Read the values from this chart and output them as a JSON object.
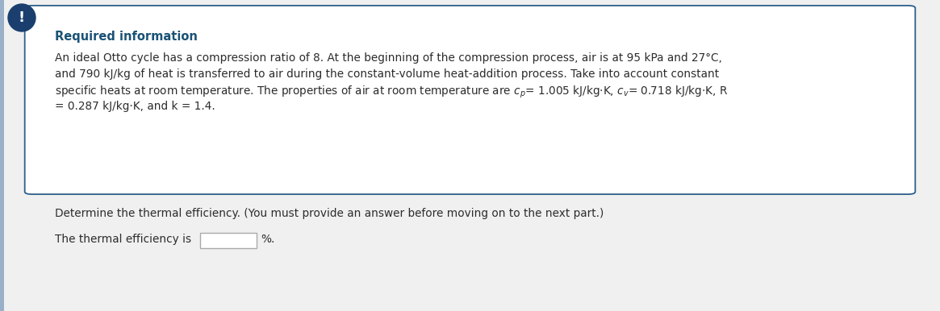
{
  "bg_color": "#f0f0f0",
  "box_bg": "#ffffff",
  "box_border_color": "#2d5f8a",
  "icon_color": "#1a3f6f",
  "icon_text": "!",
  "required_info_title": "Required information",
  "required_info_color": "#1a5276",
  "body_text_line1": "An ideal Otto cycle has a compression ratio of 8. At the beginning of the compression process, air is at 95 kPa and 27°C,",
  "body_text_line2": "and 790 kJ/kg of heat is transferred to air during the constant-volume heat-addition process. Take into account constant",
  "body_text_line3": "specific heats at room temperature. The properties of air at room temperature are $c_p$= 1.005 kJ/kg·K, $c_v$= 0.718 kJ/kg·K, R",
  "body_text_line4": "= 0.287 kJ/kg·K, and k = 1.4.",
  "question_text": "Determine the thermal efficiency. (You must provide an answer before moving on to the next part.)",
  "answer_label": "The thermal efficiency is",
  "answer_unit": "%.",
  "text_color": "#2c2c2c",
  "font_size_title": 10.5,
  "font_size_body": 9.8,
  "font_size_question": 9.8,
  "left_bar_color": "#9ab0c8"
}
